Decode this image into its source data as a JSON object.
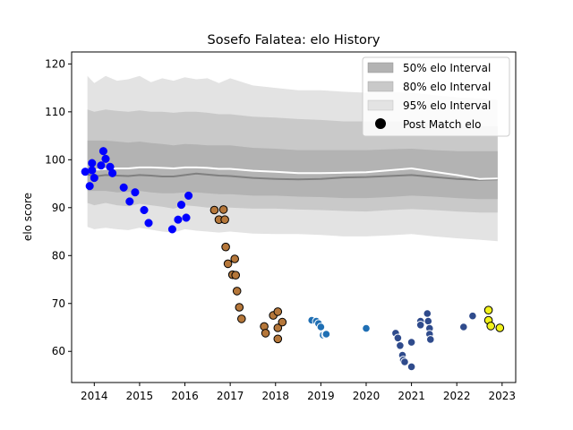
{
  "chart_data": {
    "type": "scatter",
    "title": "Sosefo Falatea: elo History",
    "xlabel": "",
    "ylabel": "elo score",
    "xlim": [
      2013.5,
      2023.3
    ],
    "ylim": [
      53.5,
      122.5
    ],
    "x_ticks": [
      2014,
      2015,
      2016,
      2017,
      2018,
      2019,
      2020,
      2021,
      2022,
      2023
    ],
    "y_ticks": [
      60,
      70,
      80,
      90,
      100,
      110,
      120
    ],
    "grid": false,
    "legend_position": "upper right",
    "legend": [
      {
        "label": "50% elo Interval",
        "kind": "band"
      },
      {
        "label": "80% elo Interval",
        "kind": "band"
      },
      {
        "label": "95% elo Interval",
        "kind": "band"
      },
      {
        "label": "Post Match elo",
        "kind": "marker"
      }
    ],
    "band_colors": {
      "50": "#b3b3b3",
      "80": "#c9c9c9",
      "95": "#e3e3e3"
    },
    "bands": {
      "x": [
        2013.85,
        2014.0,
        2014.25,
        2014.5,
        2014.75,
        2015.0,
        2015.25,
        2015.5,
        2015.75,
        2016.0,
        2016.25,
        2016.5,
        2016.75,
        2017.0,
        2017.5,
        2018.0,
        2018.5,
        2019.0,
        2019.5,
        2020.0,
        2020.5,
        2021.0,
        2021.5,
        2022.0,
        2022.5,
        2022.9
      ],
      "lo95": [
        86,
        85.5,
        85.8,
        85.5,
        85.3,
        85.8,
        85.4,
        85,
        84.8,
        85.5,
        85.2,
        85,
        84.8,
        85,
        84.6,
        84.5,
        84.5,
        84.3,
        84,
        84,
        84.2,
        84.5,
        84,
        83.6,
        83.3,
        83
      ],
      "hi95": [
        117.5,
        116,
        117.5,
        116.5,
        116.8,
        117.5,
        116.2,
        117,
        116.5,
        117.2,
        116.8,
        117,
        116,
        117,
        115.5,
        115,
        114.5,
        114.5,
        114.2,
        114,
        114.2,
        114,
        113.5,
        113,
        112.8,
        112.5
      ],
      "lo80": [
        91,
        90.5,
        91,
        90.5,
        90.3,
        90.8,
        90.5,
        90.2,
        89.8,
        90.5,
        90.3,
        90,
        90,
        90,
        89.8,
        89.8,
        89.6,
        89.5,
        89.3,
        89.2,
        89.5,
        89.7,
        89.5,
        89.2,
        89,
        89
      ],
      "hi80": [
        110.5,
        110,
        110.5,
        110.2,
        110,
        110.3,
        110,
        110,
        109.8,
        110,
        110,
        109.8,
        109.5,
        109.5,
        109,
        108.8,
        108.5,
        108.3,
        108,
        108,
        108,
        108,
        107.5,
        107.2,
        107,
        107
      ],
      "lo50": [
        93.5,
        93.5,
        93.5,
        93.2,
        93.3,
        93.5,
        93.2,
        93,
        93,
        93.2,
        93.2,
        93,
        92.8,
        92.8,
        92.5,
        92.5,
        92.3,
        92.2,
        92,
        92,
        92.2,
        92.5,
        92.3,
        92,
        91.8,
        91.8
      ],
      "hi50": [
        104,
        104,
        104,
        103.8,
        103.6,
        103.8,
        103.5,
        103.3,
        103,
        103.3,
        103.2,
        103,
        103,
        103,
        102.5,
        102.3,
        102,
        102,
        102,
        102,
        102.2,
        102.3,
        102,
        101.8,
        101.8,
        101.8
      ],
      "median": [
        97.0,
        96.5,
        96.8,
        96.7,
        96.6,
        96.8,
        96.7,
        96.5,
        96.5,
        96.8,
        97.1,
        96.9,
        96.7,
        96.6,
        96.2,
        96.0,
        95.9,
        96.0,
        96.3,
        96.4,
        96.6,
        96.8,
        96.4,
        96.0,
        95.8,
        95.9
      ],
      "mean": [
        98.0,
        97.9,
        98.1,
        98.2,
        98.2,
        98.4,
        98.4,
        98.3,
        98.2,
        98.4,
        98.4,
        98.3,
        98.1,
        98.1,
        97.7,
        97.5,
        97.2,
        97.2,
        97.3,
        97.4,
        97.8,
        98.2,
        97.5,
        96.8,
        96.0,
        96.1
      ]
    },
    "median_color": "#808080",
    "mean_color": "#ffffff",
    "series": [
      {
        "color": "#0000ff",
        "points": [
          [
            2013.8,
            97.5
          ],
          [
            2013.9,
            94.5
          ],
          [
            2013.95,
            97.8
          ],
          [
            2014.0,
            96.2
          ],
          [
            2013.95,
            99.3
          ],
          [
            2014.15,
            98.8
          ],
          [
            2014.2,
            101.8
          ],
          [
            2014.25,
            100.2
          ],
          [
            2014.35,
            98.5
          ],
          [
            2014.4,
            97.2
          ],
          [
            2014.65,
            94.2
          ],
          [
            2014.78,
            91.3
          ],
          [
            2014.9,
            93.2
          ],
          [
            2015.1,
            89.5
          ],
          [
            2015.2,
            86.8
          ],
          [
            2015.72,
            85.5
          ],
          [
            2015.85,
            87.5
          ],
          [
            2015.92,
            90.6
          ],
          [
            2016.03,
            87.9
          ],
          [
            2016.08,
            92.5
          ]
        ]
      },
      {
        "color": "#b5773a",
        "points": [
          [
            2016.65,
            89.5
          ],
          [
            2016.75,
            87.5
          ],
          [
            2016.85,
            89.6
          ],
          [
            2016.88,
            87.5
          ],
          [
            2016.9,
            81.8
          ],
          [
            2016.95,
            78.3
          ],
          [
            2017.05,
            76.0
          ],
          [
            2017.1,
            79.3
          ],
          [
            2017.12,
            75.9
          ],
          [
            2017.15,
            72.6
          ],
          [
            2017.2,
            69.2
          ],
          [
            2017.25,
            66.8
          ],
          [
            2017.75,
            65.2
          ],
          [
            2017.78,
            63.8
          ],
          [
            2017.95,
            67.5
          ],
          [
            2018.05,
            62.6
          ],
          [
            2018.05,
            64.9
          ],
          [
            2018.05,
            68.3
          ],
          [
            2018.15,
            66.1
          ]
        ]
      },
      {
        "color": "#1f6fb4",
        "points": [
          [
            2018.8,
            66.5
          ],
          [
            2018.9,
            66.3
          ],
          [
            2018.95,
            65.8
          ],
          [
            2019.0,
            65.1
          ],
          [
            2019.05,
            63.4
          ],
          [
            2019.1,
            63.5
          ],
          [
            2019.12,
            63.6
          ],
          [
            2020.0,
            64.8
          ]
        ]
      },
      {
        "color": "#2f4b8c",
        "points": [
          [
            2020.65,
            63.8
          ],
          [
            2020.7,
            62.8
          ],
          [
            2020.75,
            61.2
          ],
          [
            2020.8,
            59.2
          ],
          [
            2020.82,
            58.2
          ],
          [
            2020.85,
            57.8
          ],
          [
            2021.0,
            56.8
          ],
          [
            2021.0,
            61.9
          ],
          [
            2021.2,
            66.3
          ],
          [
            2021.2,
            65.5
          ],
          [
            2021.35,
            67.9
          ],
          [
            2021.37,
            66.3
          ],
          [
            2021.4,
            64.8
          ],
          [
            2021.4,
            63.6
          ],
          [
            2021.42,
            62.5
          ],
          [
            2022.15,
            65.1
          ],
          [
            2022.35,
            67.4
          ]
        ]
      },
      {
        "color": "#f2f21a",
        "points": [
          [
            2022.7,
            68.6
          ],
          [
            2022.7,
            66.5
          ],
          [
            2022.75,
            65.3
          ],
          [
            2022.95,
            64.9
          ]
        ]
      }
    ]
  }
}
